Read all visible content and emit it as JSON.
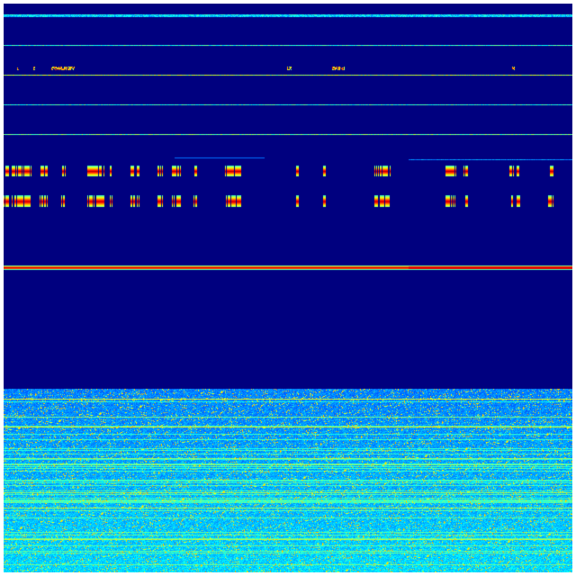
{
  "chart_data": {
    "type": "heatmap",
    "colormap": "jet",
    "colors": {
      "background": "#00007f",
      "low": "#0000ff",
      "mid": "#00ffff",
      "high": "#ff0000"
    },
    "title": "",
    "xlabel": "",
    "ylabel": "",
    "axes_visible": false,
    "grid": false,
    "legend": "none"
  }
}
